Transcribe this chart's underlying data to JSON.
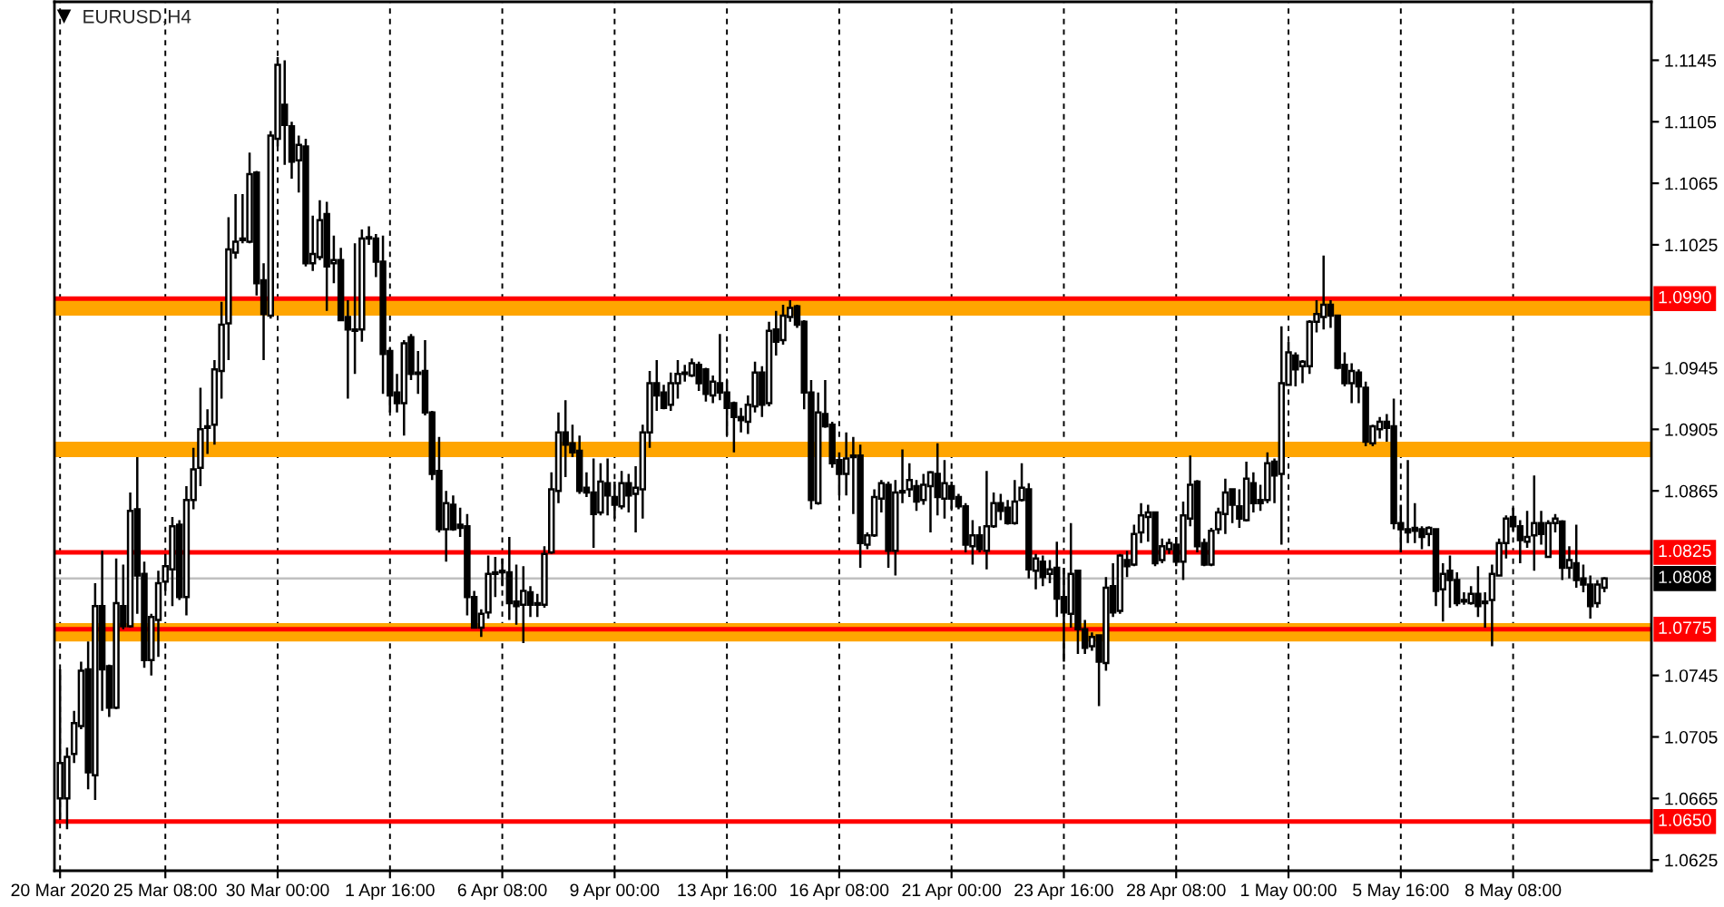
{
  "chart_data": {
    "type": "candlestick",
    "title": "EURUSD,H4",
    "color": "#000000",
    "categories": [
      "20 Mar 2020",
      null,
      null,
      null,
      null,
      null,
      null,
      null,
      null,
      null,
      null,
      null,
      null,
      null,
      null,
      "25 Mar 08:00",
      null,
      null,
      null,
      null,
      null,
      null,
      null,
      null,
      null,
      null,
      null,
      null,
      null,
      null,
      null,
      "30 Mar 00:00",
      null,
      null,
      null,
      null,
      null,
      null,
      null,
      null,
      null,
      null,
      null,
      null,
      null,
      null,
      null,
      "1 Apr 16:00",
      null,
      null,
      null,
      null,
      null,
      null,
      null,
      null,
      null,
      null,
      null,
      null,
      null,
      null,
      null,
      "6 Apr 08:00",
      null,
      null,
      null,
      null,
      null,
      null,
      null,
      null,
      null,
      null,
      null,
      null,
      null,
      null,
      null,
      "9 Apr 00:00",
      null,
      null,
      null,
      null,
      null,
      null,
      null,
      null,
      null,
      null,
      null,
      null,
      null,
      null,
      null,
      "13 Apr 16:00",
      null,
      null,
      null,
      null,
      null,
      null,
      null,
      null,
      null,
      null,
      null,
      null,
      null,
      null,
      null,
      "16 Apr 08:00",
      null,
      null,
      null,
      null,
      null,
      null,
      null,
      null,
      null,
      null,
      null,
      null,
      null,
      null,
      null,
      "21 Apr 00:00",
      null,
      null,
      null,
      null,
      null,
      null,
      null,
      null,
      null,
      null,
      null,
      null,
      null,
      null,
      null,
      "23 Apr 16:00",
      null,
      null,
      null,
      null,
      null,
      null,
      null,
      null,
      null,
      null,
      null,
      null,
      null,
      null,
      null,
      "28 Apr 08:00",
      null,
      null,
      null,
      null,
      null,
      null,
      null,
      null,
      null,
      null,
      null,
      null,
      null,
      null,
      null,
      "1 May 00:00",
      null,
      null,
      null,
      null,
      null,
      null,
      null,
      null,
      null,
      null,
      null,
      null,
      null,
      null,
      null,
      "5 May 16:00",
      null,
      null,
      null,
      null,
      null,
      null,
      null,
      null,
      null,
      null,
      null,
      null,
      null,
      null,
      null,
      "8 May 08:00",
      null,
      null,
      null,
      null,
      null,
      null,
      null,
      null,
      null,
      null,
      null,
      null,
      null
    ],
    "ohlc": [
      [
        1.0665,
        1.0749,
        1.0651,
        1.0688
      ],
      [
        1.0665,
        1.0698,
        1.0645,
        1.0692
      ],
      [
        1.0694,
        1.0722,
        1.0688,
        1.0714
      ],
      [
        1.0712,
        1.0754,
        1.071,
        1.0748
      ],
      [
        1.0749,
        1.0767,
        1.0671,
        1.0682
      ],
      [
        1.068,
        1.0805,
        1.0664,
        1.079
      ],
      [
        1.079,
        1.0826,
        1.0722,
        1.0749
      ],
      [
        1.0751,
        1.0752,
        1.0718,
        1.0724
      ],
      [
        1.0724,
        1.0821,
        1.0723,
        1.0792
      ],
      [
        1.079,
        1.0817,
        1.0775,
        1.0777
      ],
      [
        1.0777,
        1.0864,
        1.0776,
        1.0852
      ],
      [
        1.0853,
        1.0887,
        1.0785,
        1.081
      ],
      [
        1.0811,
        1.0819,
        1.075,
        1.0755
      ],
      [
        1.0755,
        1.0785,
        1.0745,
        1.0783
      ],
      [
        1.0781,
        1.0813,
        1.0757,
        1.0805
      ],
      [
        1.0806,
        1.0824,
        1.08,
        1.0816
      ],
      [
        1.0814,
        1.0848,
        1.079,
        1.0842
      ],
      [
        1.0843,
        1.0846,
        1.0794,
        1.0796
      ],
      [
        1.0796,
        1.0868,
        1.0784,
        1.0859
      ],
      [
        1.0859,
        1.0893,
        1.0853,
        1.0879
      ],
      [
        1.088,
        1.0932,
        1.0868,
        1.0905
      ],
      [
        1.0907,
        1.0918,
        1.0889,
        1.0906
      ],
      [
        1.0908,
        1.095,
        1.0895,
        1.0944
      ],
      [
        1.0943,
        1.0988,
        1.0925,
        1.0973
      ],
      [
        1.0974,
        1.1043,
        1.095,
        1.1022
      ],
      [
        1.102,
        1.1058,
        1.1016,
        1.1027
      ],
      [
        1.1028,
        1.1058,
        1.1026,
        1.1029
      ],
      [
        1.1027,
        1.1085,
        1.1026,
        1.1071
      ],
      [
        1.1072,
        1.1073,
        1.0992,
        1.1
      ],
      [
        1.1002,
        1.1013,
        1.095,
        1.098
      ],
      [
        1.0979,
        1.1099,
        1.0977,
        1.1096
      ],
      [
        1.1094,
        1.1147,
        1.1089,
        1.1142
      ],
      [
        1.1116,
        1.1145,
        1.1077,
        1.1103
      ],
      [
        1.1102,
        1.1105,
        1.1068,
        1.1079
      ],
      [
        1.108,
        1.1096,
        1.1059,
        1.109
      ],
      [
        1.1089,
        1.1094,
        1.1011,
        1.1013
      ],
      [
        1.1013,
        1.1044,
        1.1008,
        1.1019
      ],
      [
        1.1017,
        1.1054,
        1.1015,
        1.1041
      ],
      [
        1.1045,
        1.1053,
        1.0982,
        1.1011
      ],
      [
        1.1013,
        1.1031,
        1.1,
        1.1015
      ],
      [
        1.1015,
        1.1023,
        1.0976,
        1.0976
      ],
      [
        1.0978,
        1.0989,
        1.0925,
        1.097
      ],
      [
        1.0969,
        1.1026,
        1.0941,
        1.097
      ],
      [
        1.097,
        1.1035,
        1.0962,
        1.1029
      ],
      [
        1.1029,
        1.1037,
        1.1025,
        1.103
      ],
      [
        1.1029,
        1.1032,
        1.1004,
        1.1014
      ],
      [
        1.1014,
        1.1031,
        1.0928,
        1.0954
      ],
      [
        1.0956,
        1.0958,
        1.0916,
        1.0927
      ],
      [
        1.0929,
        1.0941,
        1.0916,
        1.0922
      ],
      [
        1.0922,
        1.0963,
        1.0901,
        1.0961
      ],
      [
        1.0965,
        1.0967,
        1.0937,
        1.0941
      ],
      [
        1.0942,
        1.0956,
        1.0928,
        1.0941
      ],
      [
        1.0943,
        1.0963,
        1.0914,
        1.0916
      ],
      [
        1.0916,
        1.0917,
        1.0872,
        1.0876
      ],
      [
        1.0878,
        1.09,
        1.0838,
        1.084
      ],
      [
        1.084,
        1.0865,
        1.0819,
        1.0857
      ],
      [
        1.0856,
        1.0862,
        1.0839,
        1.084
      ],
      [
        1.0843,
        1.0854,
        1.0835,
        1.0841
      ],
      [
        1.0842,
        1.085,
        1.0784,
        1.0796
      ],
      [
        1.0796,
        1.08,
        1.0776,
        1.0776
      ],
      [
        1.0776,
        1.0788,
        1.077,
        1.0785
      ],
      [
        1.0786,
        1.0823,
        1.0782,
        1.0811
      ],
      [
        1.0811,
        1.0822,
        1.0796,
        1.0812
      ],
      [
        1.0813,
        1.0821,
        1.0803,
        1.0812
      ],
      [
        1.0812,
        1.0835,
        1.0781,
        1.0792
      ],
      [
        1.0793,
        1.0817,
        1.0778,
        1.079
      ],
      [
        1.0791,
        1.0816,
        1.0766,
        1.08
      ],
      [
        1.0799,
        1.0803,
        1.0783,
        1.0791
      ],
      [
        1.0792,
        1.0798,
        1.0783,
        1.0791
      ],
      [
        1.0791,
        1.0829,
        1.0789,
        1.0824
      ],
      [
        1.0825,
        1.0877,
        1.0824,
        1.0866
      ],
      [
        1.0865,
        1.0916,
        1.0857,
        1.0903
      ],
      [
        1.0903,
        1.0924,
        1.0874,
        1.0895
      ],
      [
        1.0896,
        1.0908,
        1.0887,
        1.089
      ],
      [
        1.0891,
        1.0901,
        1.0863,
        1.0865
      ],
      [
        1.0867,
        1.0877,
        1.0861,
        1.0864
      ],
      [
        1.0864,
        1.0886,
        1.0828,
        1.085
      ],
      [
        1.0851,
        1.0883,
        1.0849,
        1.0871
      ],
      [
        1.087,
        1.0886,
        1.0849,
        1.0862
      ],
      [
        1.0861,
        1.0871,
        1.0847,
        1.0856
      ],
      [
        1.0855,
        1.0878,
        1.0853,
        1.087
      ],
      [
        1.087,
        1.0876,
        1.0851,
        1.0862
      ],
      [
        1.0863,
        1.0881,
        1.0838,
        1.0867
      ],
      [
        1.0866,
        1.0908,
        1.0847,
        1.0903
      ],
      [
        1.0903,
        1.0943,
        1.0893,
        1.0935
      ],
      [
        1.0935,
        1.095,
        1.0917,
        1.0927
      ],
      [
        1.0929,
        1.0934,
        1.0918,
        1.0919
      ],
      [
        1.0921,
        1.0942,
        1.0917,
        1.0935
      ],
      [
        1.0935,
        1.095,
        1.0925,
        1.0941
      ],
      [
        1.0941,
        1.0947,
        1.0936,
        1.0942
      ],
      [
        1.094,
        1.0951,
        1.0939,
        1.0948
      ],
      [
        1.0947,
        1.0949,
        1.093,
        1.0935
      ],
      [
        1.0944,
        1.0945,
        1.0923,
        1.0928
      ],
      [
        1.0927,
        1.094,
        1.0922,
        1.0936
      ],
      [
        1.0935,
        1.0967,
        1.0924,
        1.0929
      ],
      [
        1.0929,
        1.0937,
        1.0901,
        1.0919
      ],
      [
        1.0922,
        1.0923,
        1.089,
        1.0913
      ],
      [
        1.0913,
        1.0919,
        1.0903,
        1.0911
      ],
      [
        1.091,
        1.0927,
        1.0902,
        1.0921
      ],
      [
        1.092,
        1.0949,
        1.0916,
        1.0942
      ],
      [
        1.0942,
        1.0946,
        1.0913,
        1.0921
      ],
      [
        1.0922,
        1.0975,
        1.092,
        1.0969
      ],
      [
        1.097,
        1.0982,
        1.0953,
        1.0962
      ],
      [
        1.0963,
        1.0986,
        1.096,
        1.0979
      ],
      [
        1.0978,
        1.0989,
        1.0975,
        1.0984
      ],
      [
        1.0985,
        1.0986,
        1.0971,
        1.0973
      ],
      [
        1.0975,
        1.0976,
        1.0918,
        1.0929
      ],
      [
        1.0929,
        1.0937,
        1.0853,
        1.0859
      ],
      [
        1.0857,
        1.0929,
        1.0856,
        1.0916
      ],
      [
        1.0915,
        1.0937,
        1.0906,
        1.0907
      ],
      [
        1.0908,
        1.091,
        1.088,
        1.0883
      ],
      [
        1.0885,
        1.089,
        1.0862,
        1.0876
      ],
      [
        1.0876,
        1.0903,
        1.0862,
        1.0886
      ],
      [
        1.0887,
        1.09,
        1.085,
        1.0888
      ],
      [
        1.0888,
        1.0895,
        1.0815,
        1.0831
      ],
      [
        1.083,
        1.0838,
        1.0827,
        1.0836
      ],
      [
        1.0836,
        1.0866,
        1.0835,
        1.0861
      ],
      [
        1.086,
        1.0872,
        1.0851,
        1.087
      ],
      [
        1.0869,
        1.0871,
        1.0815,
        1.0826
      ],
      [
        1.0826,
        1.0872,
        1.081,
        1.0864
      ],
      [
        1.0865,
        1.0892,
        1.0857,
        1.0864
      ],
      [
        1.0866,
        1.0883,
        1.0861,
        1.0872
      ],
      [
        1.0868,
        1.0872,
        1.0852,
        1.0858
      ],
      [
        1.0859,
        1.0876,
        1.0856,
        1.0869
      ],
      [
        1.0868,
        1.0878,
        1.0838,
        1.0877
      ],
      [
        1.0876,
        1.0896,
        1.0849,
        1.0861
      ],
      [
        1.086,
        1.0885,
        1.0847,
        1.087
      ],
      [
        1.0868,
        1.0871,
        1.0853,
        1.086
      ],
      [
        1.0861,
        1.0863,
        1.0853,
        1.0855
      ],
      [
        1.0855,
        1.0857,
        1.0825,
        1.083
      ],
      [
        1.0829,
        1.0846,
        1.0817,
        1.0836
      ],
      [
        1.0836,
        1.0842,
        1.0825,
        1.0827
      ],
      [
        1.0826,
        1.0878,
        1.0814,
        1.0842
      ],
      [
        1.0842,
        1.0864,
        1.0841,
        1.0857
      ],
      [
        1.0857,
        1.0863,
        1.0846,
        1.0852
      ],
      [
        1.0854,
        1.0859,
        1.0843,
        1.0844
      ],
      [
        1.0844,
        1.0872,
        1.0843,
        1.0858
      ],
      [
        1.0859,
        1.0883,
        1.0858,
        1.0867
      ],
      [
        1.0866,
        1.087,
        1.0808,
        1.0814
      ],
      [
        1.0813,
        1.0824,
        1.0801,
        1.0821
      ],
      [
        1.0819,
        1.0823,
        1.0803,
        1.0809
      ],
      [
        1.0811,
        1.082,
        1.0805,
        1.0814
      ],
      [
        1.0815,
        1.0832,
        1.0783,
        1.0795
      ],
      [
        1.0796,
        1.0815,
        1.0754,
        1.0786
      ],
      [
        1.0785,
        1.0844,
        1.0776,
        1.0811
      ],
      [
        1.0813,
        1.0813,
        1.0759,
        1.0775
      ],
      [
        1.0775,
        1.0781,
        1.0759,
        1.0763
      ],
      [
        1.0764,
        1.0773,
        1.0761,
        1.077
      ],
      [
        1.0771,
        1.0771,
        1.0725,
        1.0754
      ],
      [
        1.0753,
        1.0809,
        1.0748,
        1.0802
      ],
      [
        1.0803,
        1.0818,
        1.0783,
        1.0786
      ],
      [
        1.0787,
        1.0824,
        1.0785,
        1.0823
      ],
      [
        1.082,
        1.0826,
        1.0809,
        1.0816
      ],
      [
        1.0817,
        1.0843,
        1.0816,
        1.0837
      ],
      [
        1.0838,
        1.0857,
        1.0831,
        1.0849
      ],
      [
        1.0848,
        1.0856,
        1.0832,
        1.0851
      ],
      [
        1.0851,
        1.0851,
        1.0816,
        1.0818
      ],
      [
        1.082,
        1.0834,
        1.0818,
        1.0829
      ],
      [
        1.0827,
        1.0834,
        1.0824,
        1.0831
      ],
      [
        1.083,
        1.0835,
        1.0816,
        1.0819
      ],
      [
        1.0819,
        1.0858,
        1.0807,
        1.0849
      ],
      [
        1.0847,
        1.0888,
        1.0842,
        1.0869
      ],
      [
        1.0871,
        1.0872,
        1.0825,
        1.0829
      ],
      [
        1.0831,
        1.0834,
        1.0816,
        1.0817
      ],
      [
        1.0817,
        1.0841,
        1.0816,
        1.0839
      ],
      [
        1.084,
        1.0854,
        1.0837,
        1.0851
      ],
      [
        1.085,
        1.0873,
        1.0837,
        1.0864
      ],
      [
        1.0866,
        1.0866,
        1.0844,
        1.0856
      ],
      [
        1.0855,
        1.0866,
        1.0841,
        1.0847
      ],
      [
        1.0846,
        1.0884,
        1.0845,
        1.0873
      ],
      [
        1.087,
        1.0877,
        1.0851,
        1.0857
      ],
      [
        1.0859,
        1.0869,
        1.0852,
        1.0857
      ],
      [
        1.0859,
        1.089,
        1.0857,
        1.0883
      ],
      [
        1.0884,
        1.0886,
        1.0857,
        1.0875
      ],
      [
        1.0876,
        1.0972,
        1.083,
        1.0935
      ],
      [
        1.0934,
        1.0962,
        1.0934,
        1.0955
      ],
      [
        1.0953,
        1.0955,
        1.0933,
        1.0944
      ],
      [
        1.0946,
        1.095,
        1.0935,
        1.0949
      ],
      [
        1.0946,
        1.0976,
        1.0941,
        1.0975
      ],
      [
        1.0975,
        1.0989,
        1.0968,
        1.098
      ],
      [
        1.0978,
        1.1018,
        1.097,
        1.0986
      ],
      [
        1.0986,
        1.0989,
        1.0971,
        1.0979
      ],
      [
        1.0979,
        1.0979,
        1.0944,
        1.0945
      ],
      [
        1.0947,
        1.0955,
        1.0933,
        1.0935
      ],
      [
        1.0935,
        1.0948,
        1.0922,
        1.0943
      ],
      [
        1.0942,
        1.0944,
        1.0922,
        1.0933
      ],
      [
        1.0932,
        1.0936,
        1.0894,
        1.0897
      ],
      [
        1.0896,
        1.0908,
        1.0894,
        1.0907
      ],
      [
        1.0905,
        1.0913,
        1.0899,
        1.091
      ],
      [
        1.091,
        1.0915,
        1.0897,
        1.0906
      ],
      [
        1.0907,
        1.0925,
        1.084,
        1.0844
      ],
      [
        1.0844,
        1.0856,
        1.0825,
        1.084
      ],
      [
        1.084,
        1.0885,
        1.0831,
        1.0838
      ],
      [
        1.0841,
        1.0857,
        1.0831,
        1.0839
      ],
      [
        1.084,
        1.0842,
        1.0827,
        1.0835
      ],
      [
        1.0837,
        1.0842,
        1.0829,
        1.0841
      ],
      [
        1.084,
        1.084,
        1.079,
        1.08
      ],
      [
        1.0801,
        1.0818,
        1.078,
        1.0811
      ],
      [
        1.0813,
        1.0823,
        1.0789,
        1.0807
      ],
      [
        1.0807,
        1.0812,
        1.079,
        1.0792
      ],
      [
        1.0794,
        1.0799,
        1.0791,
        1.0793
      ],
      [
        1.0792,
        1.0803,
        1.0791,
        1.0798
      ],
      [
        1.0798,
        1.0816,
        1.0783,
        1.079
      ],
      [
        1.0793,
        1.0799,
        1.0776,
        1.0792
      ],
      [
        1.0794,
        1.0817,
        1.0764,
        1.0811
      ],
      [
        1.081,
        1.0834,
        1.081,
        1.0831
      ],
      [
        1.0831,
        1.0849,
        1.0821,
        1.0847
      ],
      [
        1.0848,
        1.0854,
        1.0839,
        1.0842
      ],
      [
        1.0842,
        1.0846,
        1.0818,
        1.0833
      ],
      [
        1.0832,
        1.0852,
        1.0828,
        1.0835
      ],
      [
        1.0836,
        1.0875,
        1.0813,
        1.0844
      ],
      [
        1.0844,
        1.0852,
        1.083,
        1.0837
      ],
      [
        1.0822,
        1.0846,
        1.0822,
        1.0844
      ],
      [
        1.0844,
        1.085,
        1.0838,
        1.0847
      ],
      [
        1.0845,
        1.0846,
        1.0807,
        1.0815
      ],
      [
        1.0815,
        1.0829,
        1.0808,
        1.082
      ],
      [
        1.0818,
        1.0843,
        1.0802,
        1.0807
      ],
      [
        1.0808,
        1.0817,
        1.0799,
        1.0804
      ],
      [
        1.0804,
        1.081,
        1.0782,
        1.079
      ],
      [
        1.0792,
        1.0807,
        1.0789,
        1.0804
      ],
      [
        1.0802,
        1.0809,
        1.0799,
        1.0808
      ]
    ],
    "ylim": [
      1.0618,
      1.1183
    ],
    "yticks": [
      1.0625,
      1.0665,
      1.0705,
      1.0745,
      1.0865,
      1.0905,
      1.0945,
      1.1025,
      1.1065,
      1.1105,
      1.1145
    ],
    "grid": "x",
    "bands": [
      {
        "axis": "y",
        "from": 1.0979,
        "to": 1.099,
        "color": "#ffa500"
      },
      {
        "axis": "y",
        "from": 1.0887,
        "to": 1.0897,
        "color": "#ffa500"
      },
      {
        "axis": "y",
        "from": 1.0767,
        "to": 1.0779,
        "color": "#ffa500"
      }
    ],
    "ref_lines": [
      {
        "axis": "y",
        "value": 1.099,
        "label": "1.0990",
        "color": "#ff0000"
      },
      {
        "axis": "y",
        "value": 1.0825,
        "label": "1.0825",
        "color": "#ff0000"
      },
      {
        "axis": "y",
        "value": 1.0808,
        "label": "1.0808",
        "color": "#c0c0c0"
      },
      {
        "axis": "y",
        "value": 1.0775,
        "label": "1.0775",
        "color": "#ff0000"
      },
      {
        "axis": "y",
        "value": 1.065,
        "label": "1.0650",
        "color": "#ff0000"
      }
    ]
  }
}
